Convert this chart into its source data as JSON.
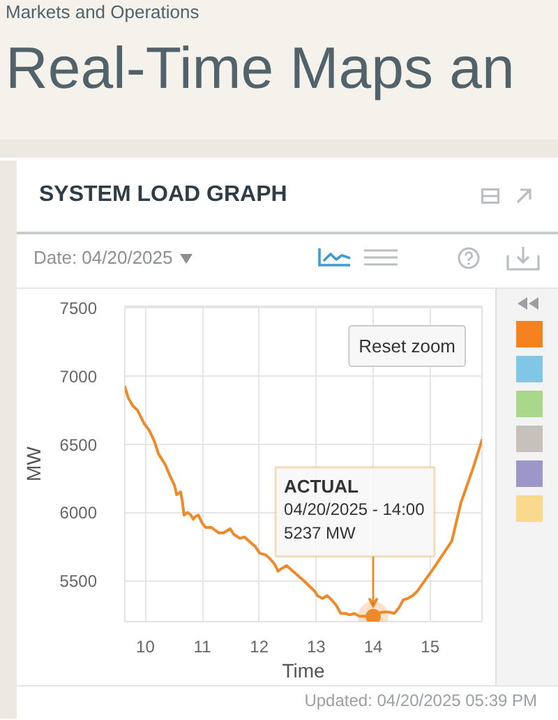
{
  "chart_data": {
    "type": "line",
    "title": "SYSTEM LOAD GRAPH",
    "subtitle": "Date: 04/20/2025",
    "xlabel": "Time",
    "ylabel": "MW",
    "annotations": [
      "Markets and Operations",
      "Real-Time Maps an",
      "Reset zoom",
      "Updated: 04/20/2025 05:39 PM",
      {
        "text": "ACTUAL\n04/20/2025 - 14:00\n5237 MW",
        "x": 14,
        "y": 5237
      }
    ],
    "x": [
      9.64,
      9.7,
      9.78,
      9.86,
      9.98,
      10.07,
      10.16,
      10.23,
      10.35,
      10.43,
      10.51,
      10.55,
      10.62,
      10.65,
      10.68,
      10.74,
      10.8,
      10.84,
      10.88,
      10.93,
      11.0,
      11.06,
      11.16,
      11.29,
      11.37,
      11.49,
      11.55,
      11.66,
      11.74,
      11.82,
      11.93,
      12.01,
      12.11,
      12.19,
      12.27,
      12.33,
      12.4,
      12.48,
      12.78,
      12.98,
      13.02,
      13.11,
      13.19,
      13.27,
      13.35,
      13.43,
      13.51,
      13.59,
      13.67,
      13.76,
      13.88,
      14.0,
      14.08,
      14.16,
      14.28,
      14.37,
      14.45,
      14.53,
      14.61,
      14.69,
      14.77,
      15.06,
      15.38,
      15.54,
      15.75,
      15.91
    ],
    "series": [
      {
        "color": "#ee8a2a",
        "values": [
          6920,
          6840,
          6780,
          6750,
          6650,
          6600,
          6520,
          6430,
          6350,
          6270,
          6200,
          6130,
          6150,
          6080,
          5980,
          6000,
          5980,
          5950,
          5970,
          5980,
          5920,
          5890,
          5890,
          5850,
          5850,
          5880,
          5840,
          5810,
          5820,
          5790,
          5750,
          5700,
          5690,
          5660,
          5620,
          5570,
          5590,
          5610,
          5500,
          5420,
          5390,
          5370,
          5390,
          5360,
          5320,
          5260,
          5260,
          5250,
          5260,
          5240,
          5240,
          5237,
          5260,
          5270,
          5270,
          5260,
          5300,
          5360,
          5370,
          5390,
          5420,
          5590,
          5790,
          6070,
          6320,
          6530
        ]
      }
    ],
    "xlim": [
      9.64,
      15.91
    ],
    "ylim": [
      5200,
      7510
    ],
    "xticks": [
      10,
      11,
      12,
      13,
      14,
      15
    ],
    "yticks": [
      5500,
      6000,
      6500,
      7000,
      7500
    ],
    "grid": true
  }
}
